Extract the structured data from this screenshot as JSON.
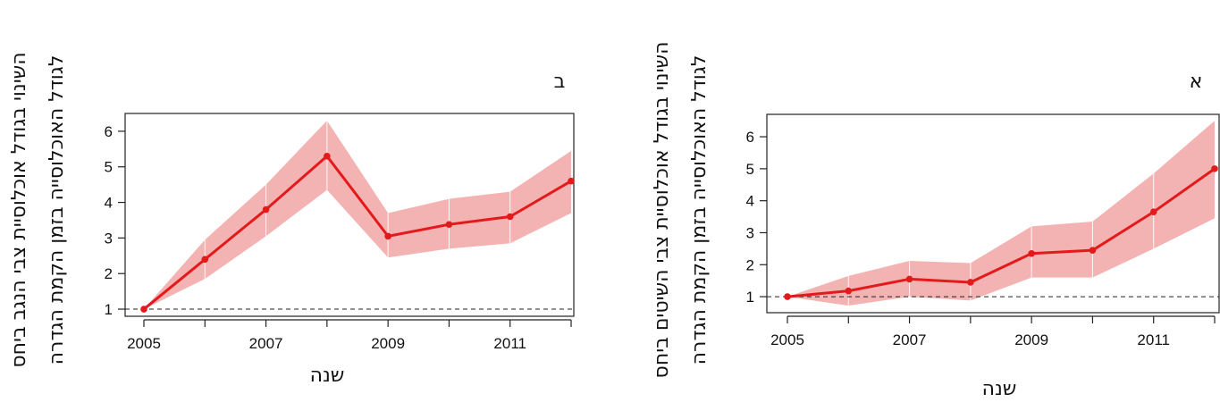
{
  "colors": {
    "line": "#e31a1c",
    "band": "#f4b3b3",
    "baseline": "#222222"
  },
  "chart_data": [
    {
      "type": "line",
      "panel_label": "ב",
      "xlabel": "שנה",
      "ylabel_line1": "השינוי בגודל אוכלוסיית צבי הנגב ביחס",
      "ylabel_line2": "לגודל האוכלוסייה בזמן הקמת הגדרה",
      "x": [
        2005,
        2006,
        2007,
        2008,
        2009,
        2010,
        2011,
        2012
      ],
      "y": [
        1.0,
        2.4,
        3.8,
        5.3,
        3.05,
        3.38,
        3.6,
        4.6
      ],
      "lower": [
        1.0,
        1.85,
        3.05,
        4.35,
        2.45,
        2.7,
        2.85,
        3.7
      ],
      "upper": [
        1.0,
        2.95,
        4.5,
        6.3,
        3.7,
        4.1,
        4.3,
        5.45
      ],
      "x_ticks": [
        2005,
        2007,
        2009,
        2011
      ],
      "y_ticks": [
        1,
        2,
        3,
        4,
        5,
        6
      ],
      "xlim": [
        2005,
        2012
      ],
      "ylim": [
        0.8,
        6.5
      ],
      "baseline": 1
    },
    {
      "type": "line",
      "panel_label": "א",
      "xlabel": "שנה",
      "ylabel_line1": "השינוי בגודל אוכלוסיית צבי השיטים ביחס",
      "ylabel_line2": "לגודל האוכלוסייה בזמן הקמת הגדרה",
      "x": [
        2005,
        2006,
        2007,
        2008,
        2009,
        2010,
        2011,
        2012
      ],
      "y": [
        1.0,
        1.18,
        1.55,
        1.45,
        2.35,
        2.45,
        3.65,
        5.0
      ],
      "lower": [
        1.0,
        0.72,
        1.0,
        0.88,
        1.6,
        1.6,
        2.5,
        3.45
      ],
      "upper": [
        1.0,
        1.65,
        2.12,
        2.05,
        3.2,
        3.35,
        4.85,
        6.5
      ],
      "x_ticks": [
        2005,
        2007,
        2009,
        2011
      ],
      "y_ticks": [
        1,
        2,
        3,
        4,
        5,
        6
      ],
      "xlim": [
        2005,
        2012
      ],
      "ylim": [
        0.5,
        6.7
      ],
      "baseline": 1
    }
  ]
}
